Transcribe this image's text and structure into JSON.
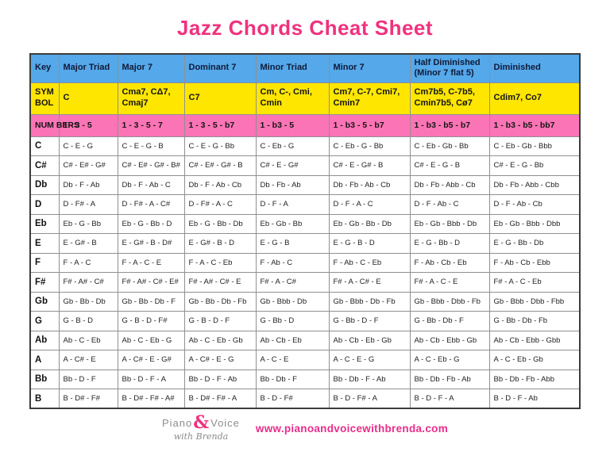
{
  "title": "Jazz Chords Cheat Sheet",
  "colors": {
    "title-pink": "#f0327e",
    "header-blue": "#55a8e9",
    "symbol-yellow": "#ffe600",
    "numbers-pink": "#fb74b5",
    "website-pink": "#e82d8a",
    "logo-gray": "#8c8c8c"
  },
  "footer": {
    "logo": {
      "piano": "Piano",
      "amp": "&",
      "voice": "Voice",
      "tagline": "with Brenda"
    },
    "website": "www.pianoandvoicewithbrenda.com"
  },
  "chart_data": {
    "type": "table",
    "columns": [
      "Key",
      "Major Triad",
      "Major 7",
      "Dominant 7",
      "Minor Triad",
      "Minor 7",
      "Half Diminished (Minor 7 flat 5)",
      "Diminished"
    ],
    "symbol_row": {
      "label": "SYM BOL",
      "values": [
        "C",
        "Cma7, CΔ7, Cmaj7",
        "C7",
        "Cm, C-, Cmi, Cmin",
        "Cm7, C-7, Cmi7, Cmin7",
        "Cm7b5, C-7b5, Cmin7b5, Cø7",
        "Cdim7, Co7"
      ]
    },
    "numbers_row": {
      "label": "NUM BERS",
      "values": [
        "1 - 3 - 5",
        "1 - 3 - 5 - 7",
        "1 - 3 - 5 - b7",
        "1 - b3 - 5",
        "1 - b3 - 5 - b7",
        "1 - b3 - b5 - b7",
        "1 - b3 - b5 - bb7"
      ]
    },
    "rows": [
      {
        "key": "C",
        "cells": [
          "C - E - G",
          "C - E - G - B",
          "C - E - G - Bb",
          "C - Eb - G",
          "C - Eb - G - Bb",
          "C - Eb - Gb - Bb",
          "C - Eb - Gb - Bbb"
        ]
      },
      {
        "key": "C#",
        "cells": [
          "C# - E# - G#",
          "C# - E# - G# - B#",
          "C# - E# - G# - B",
          "C# - E - G#",
          "C# - E - G# - B",
          "C# - E - G - B",
          "C# - E - G - Bb"
        ]
      },
      {
        "key": "Db",
        "cells": [
          "Db - F - Ab",
          "Db - F - Ab - C",
          "Db - F - Ab - Cb",
          "Db - Fb - Ab",
          "Db - Fb - Ab - Cb",
          "Db - Fb - Abb - Cb",
          "Db - Fb - Abb - Cbb"
        ]
      },
      {
        "key": "D",
        "cells": [
          "D - F# - A",
          "D - F# - A - C#",
          "D - F# - A - C",
          "D - F - A",
          "D - F - A - C",
          "D - F - Ab - C",
          "D - F - Ab - Cb"
        ]
      },
      {
        "key": "Eb",
        "cells": [
          "Eb - G - Bb",
          "Eb - G - Bb - D",
          "Eb - G - Bb - Db",
          "Eb - Gb - Bb",
          "Eb - Gb - Bb - Db",
          "Eb - Gb - Bbb - Db",
          "Eb - Gb - Bbb - Dbb"
        ]
      },
      {
        "key": "E",
        "cells": [
          "E - G# - B",
          "E - G# - B - D#",
          "E - G# - B - D",
          "E - G - B",
          "E - G - B - D",
          "E - G - Bb - D",
          "E - G - Bb - Db"
        ]
      },
      {
        "key": "F",
        "cells": [
          "F - A - C",
          "F - A - C - E",
          "F - A - C - Eb",
          "F - Ab - C",
          "F - Ab - C - Eb",
          "F - Ab - Cb - Eb",
          "F - Ab - Cb - Ebb"
        ]
      },
      {
        "key": "F#",
        "cells": [
          "F# - A# - C#",
          "F# - A# - C# - E#",
          "F# - A# - C# - E",
          "F# - A - C#",
          "F# - A - C# - E",
          "F# - A - C - E",
          "F# - A - C - Eb"
        ]
      },
      {
        "key": "Gb",
        "cells": [
          "Gb - Bb - Db",
          "Gb - Bb - Db - F",
          "Gb - Bb - Db - Fb",
          "Gb - Bbb - Db",
          "Gb - Bbb - Db - Fb",
          "Gb - Bbb - Dbb - Fb",
          "Gb - Bbb - Dbb - Fbb"
        ]
      },
      {
        "key": "G",
        "cells": [
          "G - B - D",
          "G - B - D - F#",
          "G - B - D - F",
          "G - Bb - D",
          "G - Bb - D - F",
          "G - Bb - Db - F",
          "G - Bb - Db - Fb"
        ]
      },
      {
        "key": "Ab",
        "cells": [
          "Ab - C - Eb",
          "Ab - C - Eb - G",
          "Ab - C - Eb - Gb",
          "Ab - Cb - Eb",
          "Ab - Cb - Eb - Gb",
          "Ab - Cb - Ebb - Gb",
          "Ab - Cb - Ebb - Gbb"
        ]
      },
      {
        "key": "A",
        "cells": [
          "A - C# - E",
          "A - C# - E - G#",
          "A - C# - E - G",
          "A - C - E",
          "A - C - E - G",
          "A - C - Eb - G",
          "A - C - Eb - Gb"
        ]
      },
      {
        "key": "Bb",
        "cells": [
          "Bb - D - F",
          "Bb - D - F - A",
          "Bb - D - F - Ab",
          "Bb - Db - F",
          "Bb - Db - F - Ab",
          "Bb - Db - Fb - Ab",
          "Bb - Db - Fb - Abb"
        ]
      },
      {
        "key": "B",
        "cells": [
          "B - D# - F#",
          "B - D# - F# - A#",
          "B - D# - F# - A",
          "B - D - F#",
          "B - D - F# - A",
          "B - D - F - A",
          "B - D - F - Ab"
        ]
      }
    ]
  }
}
